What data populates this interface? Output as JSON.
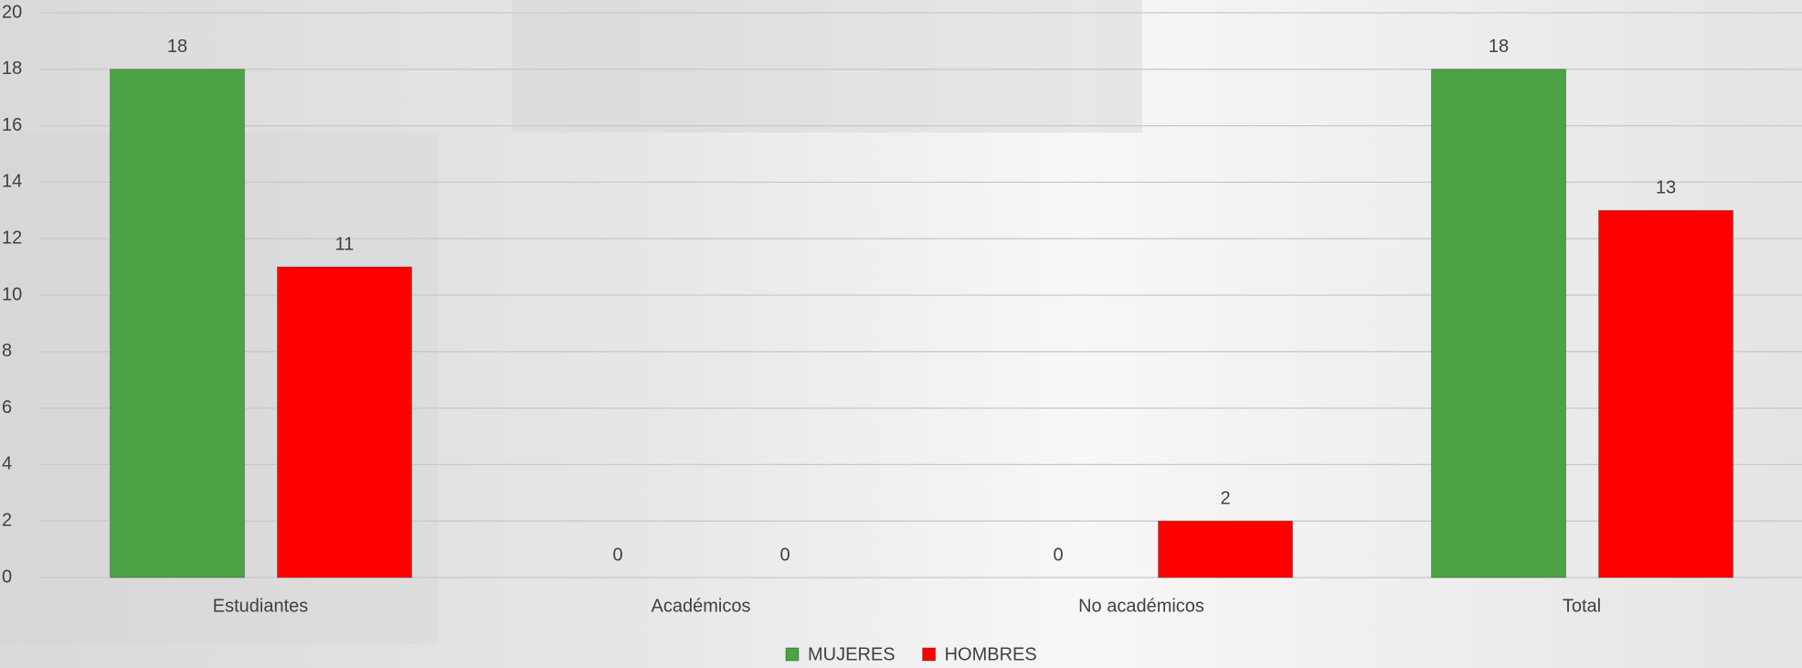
{
  "chart_data": {
    "type": "bar",
    "categories": [
      "Estudiantes",
      "Académicos",
      "No académicos",
      "Total"
    ],
    "series": [
      {
        "name": "MUJERES",
        "color": "#4ba345",
        "values": [
          18,
          0,
          0,
          18
        ]
      },
      {
        "name": "HOMBRES",
        "color": "#ff0000",
        "values": [
          11,
          0,
          2,
          13
        ]
      }
    ],
    "ylim": [
      0,
      20
    ],
    "yticks": [
      0,
      2,
      4,
      6,
      8,
      10,
      12,
      14,
      16,
      18,
      20
    ],
    "grid": true,
    "legend": "bottom"
  }
}
